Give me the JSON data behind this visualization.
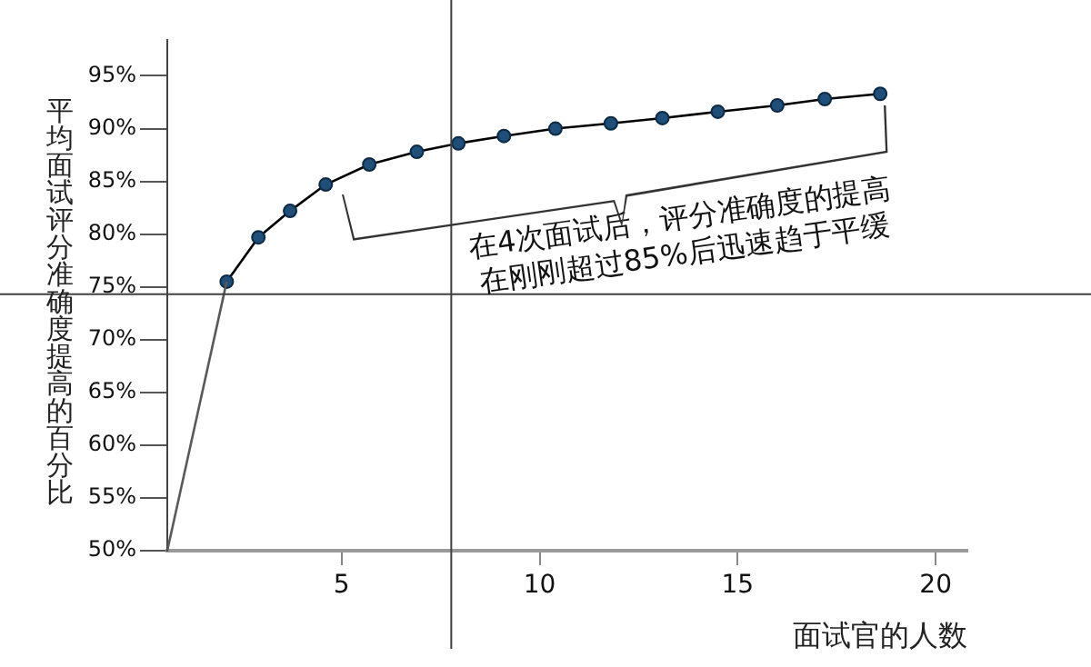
{
  "chart_data": {
    "type": "line",
    "xlabel": "面试官的人数",
    "ylabel": "平均面试评分准确度提高的百分比",
    "annotations": [
      "在4次面试后，评分准确度的提高",
      "在刚刚超过85%后迅速趋于平缓"
    ],
    "series": [
      {
        "color": "#595959",
        "x": [
          0.6,
          2.1
        ],
        "values": [
          50,
          75.5
        ]
      },
      {
        "color": "#000000",
        "marker": "circle",
        "x": [
          2.1,
          2.9,
          3.7,
          4.6,
          5.7,
          6.9,
          7.95,
          9.1,
          10.4,
          11.8,
          13.1,
          14.5,
          16.0,
          17.2,
          18.6
        ],
        "values": [
          75.5,
          79.7,
          82.2,
          84.7,
          86.6,
          87.8,
          88.6,
          89.3,
          90.0,
          90.5,
          91.0,
          91.6,
          92.2,
          92.8,
          93.3
        ]
      }
    ],
    "xlim": [
      0.6,
      20.8
    ],
    "xticks": [
      5,
      10,
      15,
      20
    ],
    "ylim": [
      50,
      98.4
    ],
    "yticks": [
      {
        "value": 50,
        "label": "50%"
      },
      {
        "value": 55,
        "label": "55%"
      },
      {
        "value": 60,
        "label": "60%"
      },
      {
        "value": 65,
        "label": "65%"
      },
      {
        "value": 70,
        "label": "70%"
      },
      {
        "value": 75,
        "label": "75%"
      },
      {
        "value": 80,
        "label": "80%"
      },
      {
        "value": 85,
        "label": "85%"
      },
      {
        "value": 90,
        "label": "90%"
      },
      {
        "value": 95,
        "label": "95%"
      }
    ],
    "ref_lines": [
      {
        "axis": "x",
        "value": 7.77,
        "color": "#404040"
      },
      {
        "axis": "y",
        "value": 74.3,
        "color": "#404040"
      }
    ],
    "grid": false,
    "legend": false
  }
}
